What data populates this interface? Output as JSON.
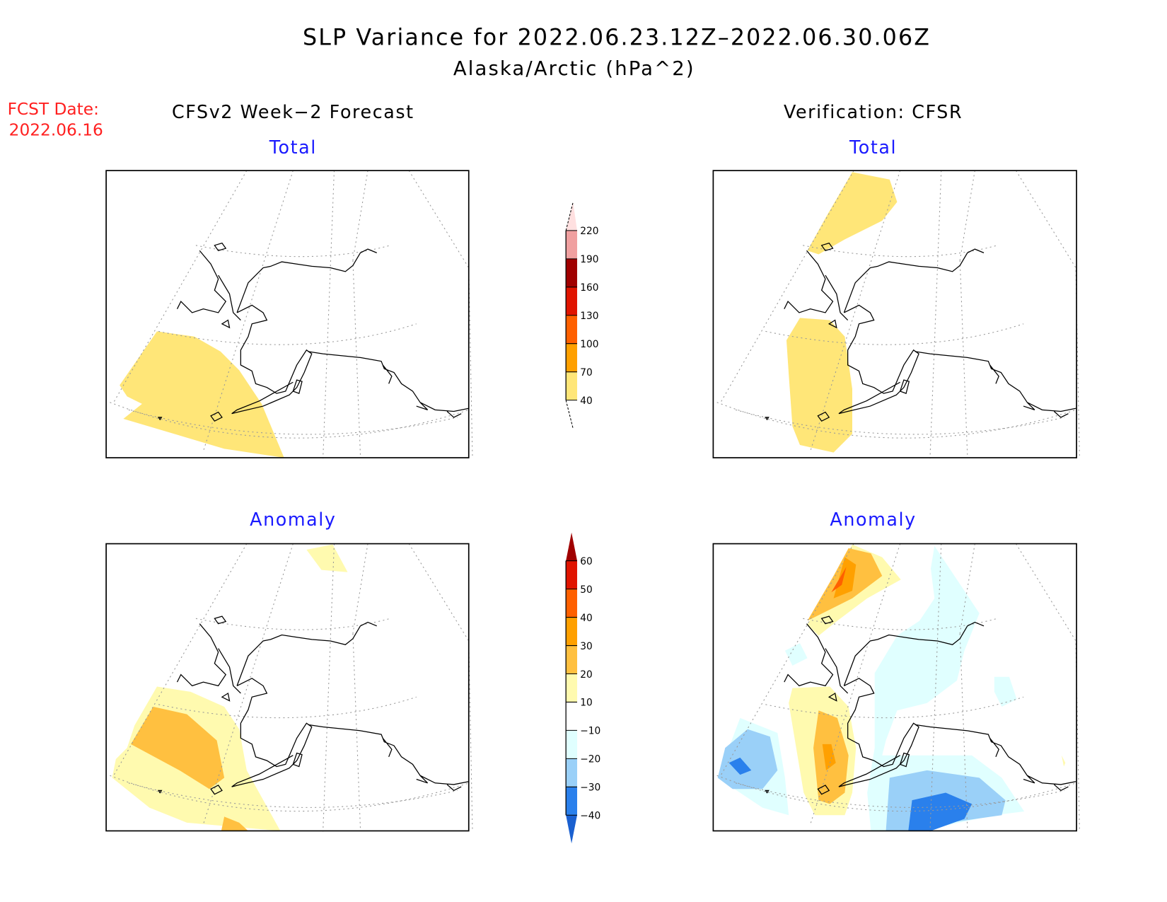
{
  "header": {
    "title": "SLP Variance for 2022.06.23.12Z–2022.06.30.06Z",
    "subtitle": "Alaska/Arctic (hPa^2)"
  },
  "fcst": {
    "label": "FCST Date:",
    "date": "2022.06.16"
  },
  "columns": {
    "left": "CFSv2 Week−2 Forecast",
    "right": "Verification: CFSR"
  },
  "panels": {
    "top_left": "Total",
    "top_right": "Total",
    "bottom_left": "Anomaly",
    "bottom_right": "Anomaly"
  },
  "colors": {
    "title_text": "#000000",
    "fcst_text": "#ff2020",
    "panel_title": "#1a1aff"
  },
  "chart_data": [
    {
      "type": "heatmap",
      "name": "total-colorbar",
      "levels": [
        40,
        70,
        100,
        130,
        160,
        190,
        220
      ],
      "labels": [
        "40",
        "70",
        "100",
        "130",
        "160",
        "190",
        "220"
      ],
      "colors": [
        "#ffe678",
        "#ffa000",
        "#ff6000",
        "#e01400",
        "#a00000",
        "#f0a0a0",
        "#ffe0e0"
      ],
      "units": "hPa^2"
    },
    {
      "type": "heatmap",
      "name": "anomaly-colorbar",
      "levels": [
        -40,
        -30,
        -20,
        -10,
        10,
        20,
        30,
        40,
        50,
        60
      ],
      "labels": [
        "−40",
        "−30",
        "−20",
        "−10",
        "10",
        "20",
        "30",
        "40",
        "50",
        "60"
      ],
      "colors": [
        "#1a60d0",
        "#2a80ec",
        "#9ad0f8",
        "#e0ffff",
        "#ffffff",
        "#fffaaf",
        "#ffc040",
        "#ffa000",
        "#ff6000",
        "#e01400",
        "#a00000"
      ],
      "units": "hPa^2"
    }
  ]
}
